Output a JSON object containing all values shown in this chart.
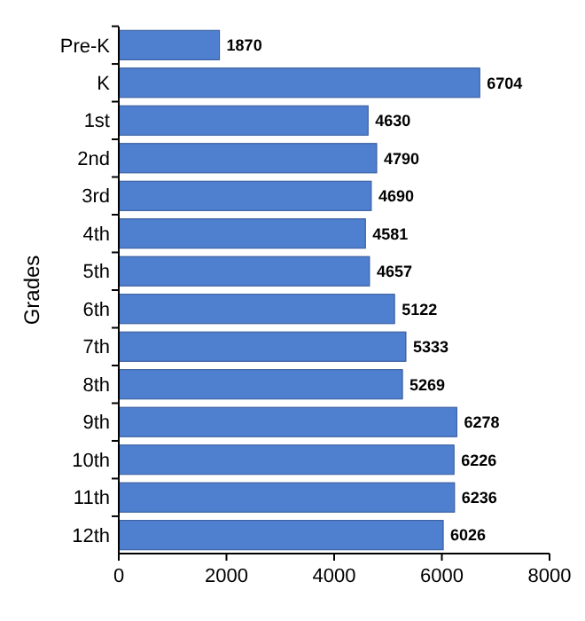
{
  "chart_data": {
    "type": "bar",
    "orientation": "horizontal",
    "ylabel": "Grades",
    "categories": [
      "Pre-K",
      "K",
      "1st",
      "2nd",
      "3rd",
      "4th",
      "5th",
      "6th",
      "7th",
      "8th",
      "9th",
      "10th",
      "11th",
      "12th"
    ],
    "values": [
      1870,
      6704,
      4630,
      4790,
      4690,
      4581,
      4657,
      5122,
      5333,
      5269,
      6278,
      6226,
      6236,
      6026
    ],
    "color": "#4f7fcf",
    "xlim": [
      0,
      8000
    ],
    "xticks": [
      0,
      2000,
      4000,
      6000,
      8000
    ],
    "data_labels": true
  }
}
